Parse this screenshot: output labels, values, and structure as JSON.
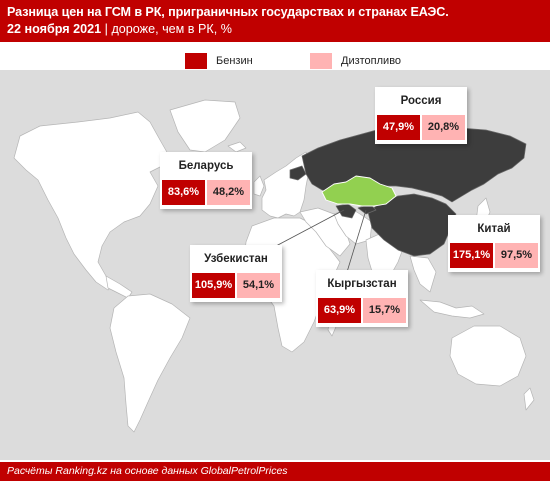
{
  "header": {
    "title": "Разница цен на ГСМ в РК, приграничных государствах и странах ЕАЭС.",
    "date": "22 ноября 2021",
    "subtitle_rest": " | дороже, чем в РК, %"
  },
  "legend": {
    "items": [
      {
        "label": "Бензин",
        "color": "#c00000"
      },
      {
        "label": "Дизтопливо",
        "color": "#ffb3b3"
      }
    ]
  },
  "colors": {
    "brand": "#c00000",
    "petrol": "#c00000",
    "diesel": "#ffb3b3",
    "land": "#ffffff",
    "ocean": "#dcdcdc",
    "highlight": "#3d3d3d",
    "kazakhstan": "#92d050"
  },
  "countries": [
    {
      "name": "Россия",
      "petrol": "47,9%",
      "diesel": "20,8%"
    },
    {
      "name": "Беларусь",
      "petrol": "83,6%",
      "diesel": "48,2%"
    },
    {
      "name": "Китай",
      "petrol": "175,1%",
      "diesel": "97,5%"
    },
    {
      "name": "Узбекистан",
      "petrol": "105,9%",
      "diesel": "54,1%"
    },
    {
      "name": "Кыргызстан",
      "petrol": "63,9%",
      "diesel": "15,7%"
    }
  ],
  "footer": {
    "text": "Расчёты Ranking.kz на основе данных GlobalPetrolPrices"
  }
}
